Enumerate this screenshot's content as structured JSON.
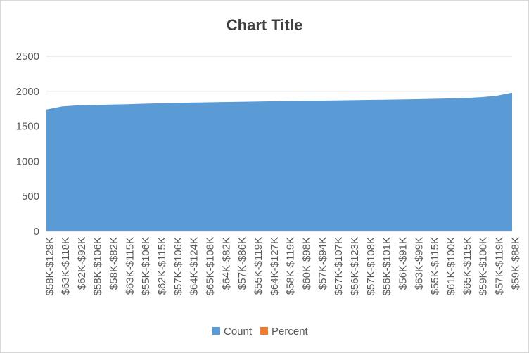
{
  "chart_data": {
    "type": "area",
    "title": "Chart Title",
    "categories": [
      "$58K-$129K",
      "$63K-$118K",
      "$62K-$92K",
      "$58K-$106K",
      "$58K-$82K",
      "$63K-$115K",
      "$55K-$106K",
      "$62K-$115K",
      "$57K-$106K",
      "$64K-$124K",
      "$65K-$108K",
      "$64K-$82K",
      "$57K-$86K",
      "$55K-$119K",
      "$64K-$127K",
      "$58K-$119K",
      "$60K-$98K",
      "$57K-$94K",
      "$57K-$107K",
      "$56K-$123K",
      "$57K-$108K",
      "$56K-$101K",
      "$56K-$91K",
      "$63K-$99K",
      "$55K-$115K",
      "$61K-$100K",
      "$65K-$115K",
      "$59K-$100K",
      "$57K-$119K",
      "$59K-$88K"
    ],
    "series": [
      {
        "name": "Count",
        "color": "#5b9bd5",
        "values": [
          1740,
          1785,
          1800,
          1805,
          1810,
          1815,
          1822,
          1828,
          1833,
          1838,
          1842,
          1846,
          1850,
          1854,
          1858,
          1861,
          1864,
          1867,
          1870,
          1874,
          1877,
          1880,
          1884,
          1888,
          1893,
          1898,
          1904,
          1915,
          1935,
          1980
        ]
      },
      {
        "name": "Percent",
        "color": "#ed7d31",
        "values": [
          0,
          0,
          0,
          0,
          0,
          0,
          0,
          0,
          0,
          0,
          0,
          0,
          0,
          0,
          0,
          0,
          0,
          0,
          0,
          0,
          0,
          0,
          0,
          0,
          0,
          0,
          0,
          0,
          0,
          0
        ]
      }
    ],
    "ylim": [
      0,
      2500
    ],
    "yticks": [
      0,
      500,
      1000,
      1500,
      2000,
      2500
    ],
    "grid": true,
    "legend": "bottom"
  }
}
